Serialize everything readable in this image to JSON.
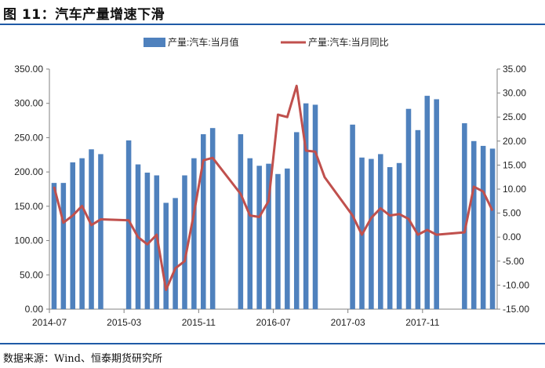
{
  "figure": {
    "title": "图 11：汽车产量增速下滑",
    "source": "数据来源：Wind、恒泰期货研究所"
  },
  "chart_data": {
    "type": "bar+line",
    "title": "",
    "xlabel": "",
    "ylabel": "",
    "legend_position": "top",
    "grid": false,
    "x_tick_labels": [
      "2014-07",
      "2015-03",
      "2015-11",
      "2016-07",
      "2017-03",
      "2017-11"
    ],
    "y_left": {
      "range": [
        0,
        350
      ],
      "ticks": [
        "0.00",
        "50.00",
        "100.00",
        "150.00",
        "200.00",
        "250.00",
        "300.00",
        "350.00"
      ]
    },
    "y_right": {
      "range": [
        -15,
        35
      ],
      "ticks": [
        "-15.00",
        "-10.00",
        "-5.00",
        "0.00",
        "5.00",
        "10.00",
        "15.00",
        "20.00",
        "25.00",
        "30.00",
        "35.00"
      ]
    },
    "x": [
      "2014-07",
      "2014-08",
      "2014-09",
      "2014-10",
      "2014-11",
      "2014-12",
      "2015-01",
      "2015-02",
      "2015-03",
      "2015-04",
      "2015-05",
      "2015-06",
      "2015-07",
      "2015-08",
      "2015-09",
      "2015-10",
      "2015-11",
      "2015-12",
      "2016-01",
      "2016-02",
      "2016-03",
      "2016-04",
      "2016-05",
      "2016-06",
      "2016-07",
      "2016-08",
      "2016-09",
      "2016-10",
      "2016-11",
      "2016-12",
      "2017-01",
      "2017-02",
      "2017-03",
      "2017-04",
      "2017-05",
      "2017-06",
      "2017-07",
      "2017-08",
      "2017-09",
      "2017-10",
      "2017-11",
      "2017-12",
      "2018-01",
      "2018-02",
      "2018-03",
      "2018-04",
      "2018-05",
      "2018-06"
    ],
    "series": [
      {
        "name": "产量:汽车:当月值",
        "axis": "left",
        "kind": "bar",
        "color": "#4f81bd",
        "values": [
          184,
          184,
          214,
          220,
          233,
          226,
          null,
          null,
          246,
          211,
          199,
          195,
          155,
          162,
          195,
          220,
          255,
          264,
          null,
          null,
          255,
          220,
          209,
          212,
          197,
          205,
          258,
          300,
          298,
          null,
          null,
          null,
          269,
          221,
          219,
          226,
          207,
          213,
          292,
          261,
          311,
          306,
          null,
          null,
          271,
          245,
          238,
          234
        ]
      },
      {
        "name": "产量:汽车:当月同比",
        "axis": "right",
        "kind": "line",
        "color": "#c0504d",
        "values": [
          10.5,
          3.0,
          4.5,
          6.5,
          2.5,
          3.7,
          null,
          null,
          3.5,
          0.0,
          -1.5,
          0.5,
          -11.0,
          -6.5,
          -5.0,
          5.0,
          16.0,
          16.5,
          null,
          null,
          9.0,
          4.5,
          4.2,
          7.5,
          25.5,
          25.0,
          31.5,
          18.0,
          17.8,
          12.5,
          null,
          null,
          4.5,
          0.5,
          4.0,
          6.0,
          4.5,
          4.8,
          3.8,
          0.5,
          1.5,
          0.5,
          null,
          null,
          1.0,
          10.5,
          9.5,
          5.5
        ]
      }
    ]
  }
}
